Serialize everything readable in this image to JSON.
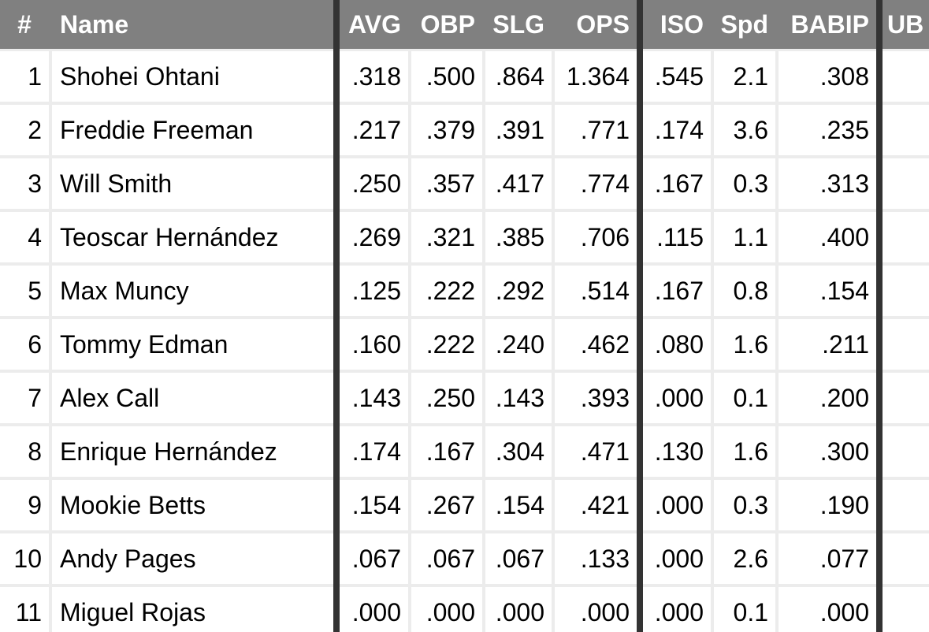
{
  "columns": [
    "#",
    "Name",
    "AVG",
    "OBP",
    "SLG",
    "OPS",
    "ISO",
    "Spd",
    "BABIP",
    "UB"
  ],
  "rows": [
    [
      "1",
      "Shohei Ohtani",
      ".318",
      ".500",
      ".864",
      "1.364",
      ".545",
      "2.1",
      ".308",
      ""
    ],
    [
      "2",
      "Freddie Freeman",
      ".217",
      ".379",
      ".391",
      ".771",
      ".174",
      "3.6",
      ".235",
      ""
    ],
    [
      "3",
      "Will Smith",
      ".250",
      ".357",
      ".417",
      ".774",
      ".167",
      "0.3",
      ".313",
      ""
    ],
    [
      "4",
      "Teoscar Hernández",
      ".269",
      ".321",
      ".385",
      ".706",
      ".115",
      "1.1",
      ".400",
      ""
    ],
    [
      "5",
      "Max Muncy",
      ".125",
      ".222",
      ".292",
      ".514",
      ".167",
      "0.8",
      ".154",
      ""
    ],
    [
      "6",
      "Tommy Edman",
      ".160",
      ".222",
      ".240",
      ".462",
      ".080",
      "1.6",
      ".211",
      ""
    ],
    [
      "7",
      "Alex Call",
      ".143",
      ".250",
      ".143",
      ".393",
      ".000",
      "0.1",
      ".200",
      ""
    ],
    [
      "8",
      "Enrique Hernández",
      ".174",
      ".167",
      ".304",
      ".471",
      ".130",
      "1.6",
      ".300",
      ""
    ],
    [
      "9",
      "Mookie Betts",
      ".154",
      ".267",
      ".154",
      ".421",
      ".000",
      "0.3",
      ".190",
      ""
    ],
    [
      "10",
      "Andy Pages",
      ".067",
      ".067",
      ".067",
      ".133",
      ".000",
      "2.6",
      ".077",
      ""
    ],
    [
      "11",
      "Miguel Rojas",
      ".000",
      ".000",
      ".000",
      ".000",
      ".000",
      "0.1",
      ".000",
      ""
    ]
  ],
  "colors": {
    "header_bg": "#808080",
    "separator": "#333333",
    "grid": "#ececec"
  }
}
